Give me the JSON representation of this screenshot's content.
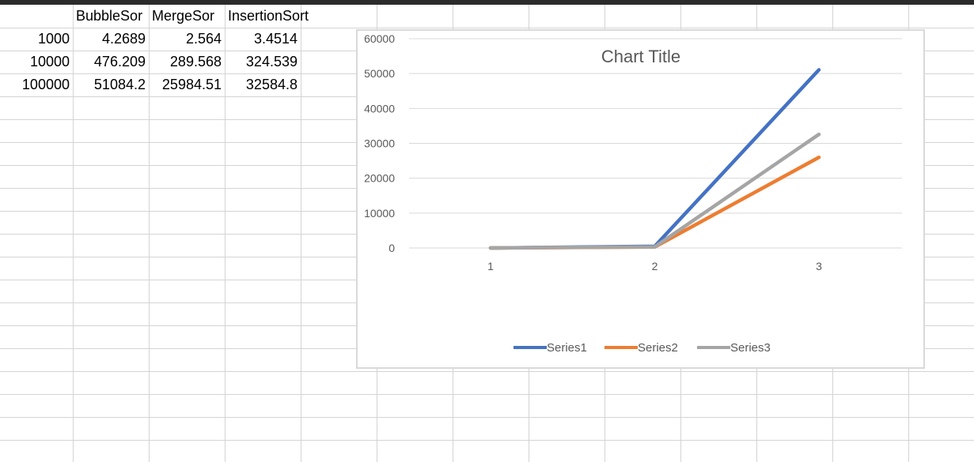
{
  "sheet": {
    "headers": [
      "",
      "BubbleSor",
      "MergeSor",
      "InsertionSort"
    ],
    "rows": [
      [
        "1000",
        "4.2689",
        "2.564",
        "3.4514"
      ],
      [
        "10000",
        "476.209",
        "289.568",
        "324.539"
      ],
      [
        "100000",
        "51084.2",
        "25984.51",
        "32584.8"
      ]
    ]
  },
  "chart_data": {
    "type": "line",
    "title": "Chart Title",
    "categories": [
      "1",
      "2",
      "3"
    ],
    "y_ticks": [
      "0",
      "10000",
      "20000",
      "30000",
      "40000",
      "50000",
      "60000"
    ],
    "ylim": [
      0,
      60000
    ],
    "grid": true,
    "legend": "bottom",
    "series": [
      {
        "name": "Series1",
        "color": "#4472c4",
        "values": [
          4.2689,
          476.209,
          51084.2
        ]
      },
      {
        "name": "Series2",
        "color": "#ed7d31",
        "values": [
          2.564,
          289.568,
          25984.51
        ]
      },
      {
        "name": "Series3",
        "color": "#a5a5a5",
        "values": [
          3.4514,
          324.539,
          32584.8
        ]
      }
    ]
  }
}
